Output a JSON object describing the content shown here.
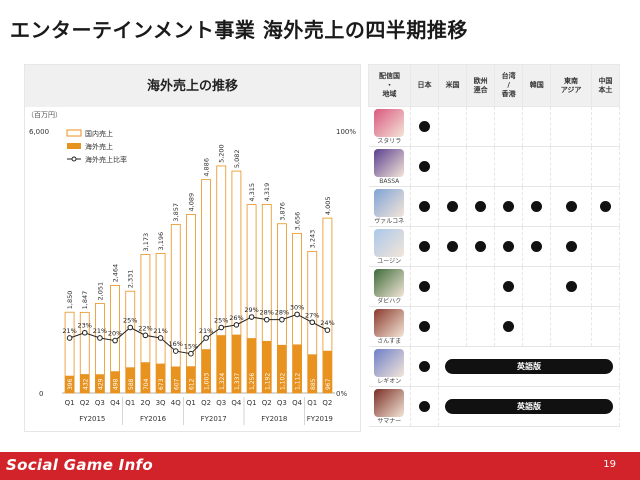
{
  "title": "エンターテインメント事業 海外売上の四半期推移",
  "chart_data": {
    "type": "bar",
    "title": "海外売上の推移",
    "unit_label": "（百万円）",
    "y_left_ticks": [
      "6,000",
      "0"
    ],
    "y_right_ticks": [
      "100%",
      "0%"
    ],
    "ylim": [
      0,
      6000
    ],
    "y2lim": [
      0,
      100
    ],
    "stacked": true,
    "legend": [
      {
        "name": "国内売上",
        "color": "#ffffff",
        "border": "#e8921f"
      },
      {
        "name": "海外売上",
        "color": "#e8921f"
      },
      {
        "name": "海外売上比率",
        "color": "#222222"
      }
    ],
    "categories": [
      "Q1",
      "Q2",
      "Q3",
      "Q4",
      "Q1",
      "2Q",
      "3Q",
      "4Q",
      "Q1",
      "Q2",
      "Q3",
      "Q4",
      "Q1",
      "Q2",
      "Q3",
      "Q4",
      "Q1",
      "Q2"
    ],
    "groups": [
      {
        "label": "FY2015",
        "span": 4
      },
      {
        "label": "FY2016",
        "span": 4
      },
      {
        "label": "FY2017",
        "span": 4
      },
      {
        "label": "FY2018",
        "span": 4
      },
      {
        "label": "FY2019",
        "span": 2
      }
    ],
    "totals": [
      1850,
      1847,
      2051,
      2464,
      2331,
      3173,
      3196,
      3857,
      4089,
      4886,
      5200,
      5082,
      4315,
      4319,
      3876,
      3656,
      3243,
      4005
    ],
    "total_labels": [
      "1,850",
      "1,847",
      "2,051",
      "2,464",
      "2,331",
      "3,173",
      "3,196",
      "3,857",
      "4,089",
      "4,886",
      "5,200",
      "5,082",
      "4,315",
      "4,319",
      "3,876",
      "3,656",
      "3,243",
      "4,005"
    ],
    "overseas": [
      396,
      432,
      429,
      498,
      588,
      704,
      673,
      607,
      612,
      1003,
      1324,
      1337,
      1256,
      1192,
      1102,
      1112,
      885,
      967
    ],
    "overseas_labels": [
      "396",
      "432",
      "429",
      "498",
      "588",
      "704",
      "673",
      "607",
      "612",
      "1,003",
      "1,324",
      "1,337",
      "1,256",
      "1,192",
      "1,102",
      "1,112",
      "885",
      "967"
    ],
    "ratio": [
      21,
      23,
      21,
      20,
      25,
      22,
      21,
      16,
      15,
      21,
      25,
      26,
      29,
      28,
      28,
      30,
      27,
      24
    ],
    "ratio_labels": [
      "21%",
      "23%",
      "21%",
      "20%",
      "25%",
      "22%",
      "21%",
      "16%",
      "15%",
      "21%",
      "25%",
      "26%",
      "29%",
      "28%",
      "28%",
      "30%",
      "27%",
      "24%"
    ]
  },
  "table": {
    "header_first": "配信国\n・\n地域",
    "regions": [
      "日本",
      "米国",
      "欧州\n連合",
      "台湾\n/\n香港",
      "韓国",
      "東南\nアジア",
      "中国\n本土"
    ],
    "games": [
      {
        "name": "スタリラ",
        "icon": "game-icon-1",
        "color": "#d9577f",
        "dots": [
          1,
          0,
          0,
          0,
          0,
          0,
          0
        ]
      },
      {
        "name": "BASSA",
        "icon": "game-icon-2",
        "color": "#5a3f8f",
        "dots": [
          1,
          0,
          0,
          0,
          0,
          0,
          0
        ]
      },
      {
        "name": "ヴァルコネ",
        "icon": "game-icon-3",
        "color": "#7fa3d6",
        "dots": [
          1,
          1,
          1,
          1,
          1,
          1,
          1
        ]
      },
      {
        "name": "ユージン",
        "icon": "game-icon-4",
        "color": "#a9c7ea",
        "dots": [
          1,
          1,
          1,
          1,
          1,
          1,
          0
        ]
      },
      {
        "name": "ダビハク",
        "icon": "game-icon-5",
        "color": "#3d6b3a",
        "dots": [
          1,
          0,
          0,
          1,
          0,
          1,
          0
        ]
      },
      {
        "name": "さんすま",
        "icon": "game-icon-6",
        "color": "#8a3a2c",
        "dots": [
          1,
          0,
          0,
          1,
          0,
          0,
          0
        ]
      },
      {
        "name": "レギオン",
        "icon": "game-icon-7",
        "color": "#6d7fc9",
        "dots": [
          1,
          0,
          0,
          0,
          0,
          0,
          0
        ],
        "english": "英語版"
      },
      {
        "name": "サマナー",
        "icon": "game-icon-8",
        "color": "#7a2e24",
        "dots": [
          1,
          0,
          0,
          0,
          0,
          0,
          0
        ],
        "english": "英語版"
      }
    ]
  },
  "footer": {
    "logo": "Social Game Info",
    "page": "19"
  }
}
